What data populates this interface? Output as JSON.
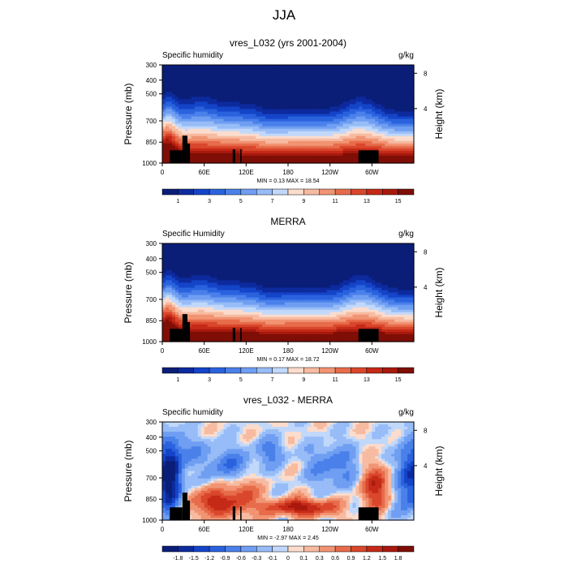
{
  "figure": {
    "title": "JJA"
  },
  "chart_data": [
    {
      "type": "heatmap",
      "title": "vres_L032 (yrs 2001-2004)",
      "left_label": "Specific humidity",
      "right_label": "g/kg",
      "ylabel": "Pressure (mb)",
      "ylabel_right": "Height (km)",
      "x_ticks": [
        "0",
        "60E",
        "120E",
        "180",
        "120W",
        "60W"
      ],
      "y_ticks": [
        "300",
        "400",
        "500",
        "700",
        "850",
        "1000"
      ],
      "y_right_ticks": [
        "8",
        "4"
      ],
      "stats": "MIN =   0.13  MAX =  18.54",
      "colorbar_labels": [
        "1",
        "3",
        "5",
        "7",
        "9",
        "11",
        "13",
        "15"
      ],
      "colorbar_levels": 16,
      "field": "humidity",
      "scale": 1.0
    },
    {
      "type": "heatmap",
      "title": "MERRA",
      "left_label": "Specific Humidity",
      "right_label": "g/kg",
      "ylabel": "Pressure (mb)",
      "ylabel_right": "Height (km)",
      "x_ticks": [
        "0",
        "60E",
        "120E",
        "180",
        "120W",
        "60W"
      ],
      "y_ticks": [
        "300",
        "400",
        "500",
        "700",
        "850",
        "1000"
      ],
      "y_right_ticks": [
        "8",
        "4"
      ],
      "stats": "MIN =   0.17  MAX =  18.72",
      "colorbar_labels": [
        "1",
        "3",
        "5",
        "7",
        "9",
        "11",
        "13",
        "15"
      ],
      "colorbar_levels": 16,
      "field": "humidity",
      "scale": 1.02
    },
    {
      "type": "heatmap",
      "title": "vres_L032 - MERRA",
      "left_label": "Specific humidity",
      "right_label": "g/kg",
      "ylabel": "Pressure (mb)",
      "ylabel_right": "Height (km)",
      "x_ticks": [
        "0",
        "60E",
        "120E",
        "180",
        "120W",
        "60W"
      ],
      "y_ticks": [
        "300",
        "400",
        "500",
        "700",
        "850",
        "1000"
      ],
      "y_right_ticks": [
        "8",
        "4"
      ],
      "stats": "MIN =  -2.97  MAX =   2.45",
      "colorbar_labels": [
        "-1.8",
        "-1.5",
        "-1.2",
        "-0.9",
        "-0.6",
        "-0.3",
        "-0.1",
        "0",
        "0.1",
        "0.3",
        "0.6",
        "0.9",
        "1.2",
        "1.5",
        "1.8"
      ],
      "colorbar_levels": 16,
      "field": "difference",
      "scale": 1.0
    }
  ],
  "palette": [
    "#0a1e78",
    "#0d2b9e",
    "#1444c8",
    "#2a62de",
    "#4a80ea",
    "#6f9ef2",
    "#97bcf7",
    "#c1d8fb",
    "#fbdccd",
    "#f7bba1",
    "#f19473",
    "#e76c4b",
    "#d9472c",
    "#c42a17",
    "#a8190d",
    "#7e0e06"
  ]
}
